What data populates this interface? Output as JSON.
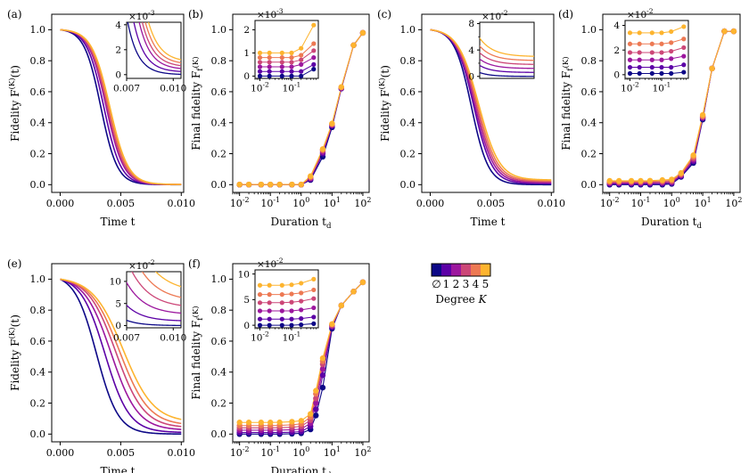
{
  "figure": {
    "colorbar": {
      "labels": [
        "∅",
        "1",
        "2",
        "3",
        "4",
        "5"
      ],
      "title": "Degree K",
      "colors": [
        "#0d0887",
        "#5c01a6",
        "#9c179e",
        "#cc4778",
        "#ed7953",
        "#fdb42f"
      ]
    }
  },
  "chart_data": [
    {
      "id": "a",
      "panel_label": "(a)",
      "type": "line",
      "xlabel": "Time t",
      "ylabel": "Fidelity F^(K)(t)",
      "xlim": [
        -0.0007,
        0.0102
      ],
      "ylim": [
        -0.05,
        1.1
      ],
      "xticks": [
        0.0,
        0.005,
        0.01
      ],
      "xtick_labels": [
        "0.000",
        "0.005",
        "0.010"
      ],
      "yticks": [
        0.0,
        0.2,
        0.4,
        0.6,
        0.8,
        1.0
      ],
      "ytick_labels": [
        "0.0",
        "0.2",
        "0.4",
        "0.6",
        "0.8",
        "1.0"
      ],
      "series_model": {
        "kind": "decay",
        "centers": [
          0.00335,
          0.0036,
          0.0038,
          0.0039,
          0.004,
          0.0041
        ],
        "widths": [
          0.00068,
          0.0007,
          0.00072,
          0.00073,
          0.00074,
          0.00075
        ],
        "floors": [
          0.0,
          0.0002,
          0.0004,
          0.0006,
          0.0008,
          0.001
        ]
      },
      "inset": {
        "xlim": [
          0.007,
          0.0105
        ],
        "ylim": [
          -0.0003,
          0.0042
        ],
        "xticks": [
          0.007,
          0.01
        ],
        "xtick_labels": [
          "0.007",
          "0.010"
        ],
        "yticks": [
          0,
          0.002,
          0.004
        ],
        "ytick_labels": [
          "0",
          "2",
          "4"
        ],
        "multiplier": "×10^-3"
      }
    },
    {
      "id": "b",
      "panel_label": "(b)",
      "type": "scatter",
      "xlabel": "Duration t_d",
      "ylabel": "Final fidelity F_f^(K)",
      "xscale": "log",
      "xlim": [
        0.006,
        160
      ],
      "ylim": [
        -0.05,
        1.1
      ],
      "xticks": [
        0.01,
        0.1,
        1,
        10,
        100
      ],
      "xtick_labels": [
        "10^-2",
        "10^-1",
        "10^0",
        "10^1",
        "10^2"
      ],
      "yticks": [
        0.0,
        0.2,
        0.4,
        0.6,
        0.8,
        1.0
      ],
      "ytick_labels": [
        "0.0",
        "0.2",
        "0.4",
        "0.6",
        "0.8",
        "1.0"
      ],
      "x": [
        0.01,
        0.02,
        0.05,
        0.1,
        0.2,
        0.5,
        1,
        2,
        5,
        10,
        20,
        50,
        100
      ],
      "series": [
        {
          "name": "∅",
          "values": [
            0.0,
            0.0,
            0.0,
            0.0,
            0.0,
            0.0,
            0.0,
            0.03,
            0.18,
            0.37,
            0.62,
            0.9,
            0.98
          ]
        },
        {
          "name": "1",
          "values": [
            0.0002,
            0.0002,
            0.0002,
            0.0002,
            0.0002,
            0.0002,
            0.0003,
            0.035,
            0.2,
            0.38,
            0.62,
            0.9,
            0.98
          ]
        },
        {
          "name": "2",
          "values": [
            0.0004,
            0.0004,
            0.0004,
            0.0004,
            0.0004,
            0.0004,
            0.0005,
            0.04,
            0.21,
            0.385,
            0.625,
            0.9,
            0.98
          ]
        },
        {
          "name": "3",
          "values": [
            0.0006,
            0.0006,
            0.0006,
            0.0006,
            0.0006,
            0.0006,
            0.0008,
            0.045,
            0.22,
            0.39,
            0.625,
            0.9,
            0.98
          ]
        },
        {
          "name": "4",
          "values": [
            0.0008,
            0.0008,
            0.0008,
            0.0008,
            0.0008,
            0.0008,
            0.001,
            0.05,
            0.225,
            0.39,
            0.63,
            0.9,
            0.98
          ]
        },
        {
          "name": "5",
          "values": [
            0.001,
            0.001,
            0.001,
            0.001,
            0.001,
            0.001,
            0.0013,
            0.055,
            0.23,
            0.395,
            0.63,
            0.9,
            0.98
          ]
        }
      ],
      "inset": {
        "xscale": "log",
        "xlim": [
          0.007,
          0.7
        ],
        "ylim": [
          -0.0001,
          0.0024
        ],
        "xticks": [
          0.01,
          0.1
        ],
        "xtick_labels": [
          "10^-2",
          "10^-1"
        ],
        "yticks": [
          0,
          0.001,
          0.002
        ],
        "ytick_labels": [
          "0",
          "1",
          "2"
        ],
        "multiplier": "×10^-3",
        "x": [
          0.01,
          0.02,
          0.05,
          0.1,
          0.2,
          0.5
        ],
        "series": [
          {
            "name": "∅",
            "values": [
              0.0,
              0.0,
              0.0,
              0.0,
              0.0,
              0.0003
            ]
          },
          {
            "name": "1",
            "values": [
              0.0002,
              0.0002,
              0.0002,
              0.0002,
              0.0002,
              0.0005
            ]
          },
          {
            "name": "2",
            "values": [
              0.0004,
              0.0004,
              0.0004,
              0.0004,
              0.0005,
              0.0008
            ]
          },
          {
            "name": "3",
            "values": [
              0.0006,
              0.0006,
              0.0006,
              0.0006,
              0.0007,
              0.0011
            ]
          },
          {
            "name": "4",
            "values": [
              0.0008,
              0.0008,
              0.0008,
              0.0008,
              0.0009,
              0.0014
            ]
          },
          {
            "name": "5",
            "values": [
              0.001,
              0.001,
              0.001,
              0.001,
              0.0012,
              0.0022
            ]
          }
        ]
      }
    },
    {
      "id": "c",
      "panel_label": "(c)",
      "type": "line",
      "xlabel": "Time t",
      "ylabel": "Fidelity F^(K)(t)",
      "xlim": [
        -0.0007,
        0.0102
      ],
      "ylim": [
        -0.05,
        1.1
      ],
      "xticks": [
        0.0,
        0.005,
        0.01
      ],
      "xtick_labels": [
        "0.000",
        "0.005",
        "0.010"
      ],
      "yticks": [
        0.0,
        0.2,
        0.4,
        0.6,
        0.8,
        1.0
      ],
      "ytick_labels": [
        "0.0",
        "0.2",
        "0.4",
        "0.6",
        "0.8",
        "1.0"
      ],
      "series_model": {
        "kind": "decay",
        "centers": [
          0.0034,
          0.0036,
          0.0037,
          0.0038,
          0.0039,
          0.004
        ],
        "widths": [
          0.0007,
          0.00075,
          0.00078,
          0.0008,
          0.00082,
          0.00085
        ],
        "floors": [
          0.0,
          0.006,
          0.012,
          0.018,
          0.024,
          0.03
        ]
      },
      "inset": {
        "xlim": [
          0.007,
          0.0105
        ],
        "ylim": [
          -0.003,
          0.082
        ],
        "xticks": [],
        "xtick_labels": [],
        "yticks": [
          0,
          0.04,
          0.08
        ],
        "ytick_labels": [
          "0",
          "4",
          "8"
        ],
        "yticks_minor": [
          0.02,
          0.06
        ],
        "multiplier": "×10^-2"
      }
    },
    {
      "id": "d",
      "panel_label": "(d)",
      "type": "scatter",
      "xlabel": "Duration t_d",
      "ylabel": "Final fidelity F_f^(K)",
      "xscale": "log",
      "xlim": [
        0.006,
        160
      ],
      "ylim": [
        -0.05,
        1.1
      ],
      "xticks": [
        0.01,
        0.1,
        1,
        10,
        100
      ],
      "xtick_labels": [
        "10^-2",
        "10^-1",
        "10^0",
        "10^1",
        "10^2"
      ],
      "yticks": [
        0.0,
        0.2,
        0.4,
        0.6,
        0.8,
        1.0
      ],
      "ytick_labels": [
        "0.0",
        "0.2",
        "0.4",
        "0.6",
        "0.8",
        "1.0"
      ],
      "x": [
        0.01,
        0.02,
        0.05,
        0.1,
        0.2,
        0.5,
        1,
        2,
        5,
        10,
        20,
        50,
        100
      ],
      "series": [
        {
          "name": "∅",
          "values": [
            0.0,
            0.0,
            0.0,
            0.0,
            0.0,
            0.0,
            0.005,
            0.05,
            0.14,
            0.42,
            0.75,
            0.99,
            0.99
          ]
        },
        {
          "name": "1",
          "values": [
            0.005,
            0.005,
            0.005,
            0.005,
            0.005,
            0.006,
            0.01,
            0.055,
            0.15,
            0.43,
            0.75,
            0.99,
            0.99
          ]
        },
        {
          "name": "2",
          "values": [
            0.01,
            0.01,
            0.01,
            0.01,
            0.011,
            0.012,
            0.016,
            0.06,
            0.16,
            0.43,
            0.75,
            0.99,
            0.99
          ]
        },
        {
          "name": "3",
          "values": [
            0.015,
            0.015,
            0.015,
            0.015,
            0.016,
            0.018,
            0.022,
            0.065,
            0.17,
            0.44,
            0.75,
            0.99,
            0.99
          ]
        },
        {
          "name": "4",
          "values": [
            0.02,
            0.02,
            0.02,
            0.02,
            0.021,
            0.024,
            0.028,
            0.07,
            0.18,
            0.44,
            0.75,
            0.99,
            0.99
          ]
        },
        {
          "name": "5",
          "values": [
            0.025,
            0.025,
            0.025,
            0.025,
            0.026,
            0.03,
            0.034,
            0.075,
            0.19,
            0.45,
            0.75,
            0.99,
            0.99
          ]
        }
      ],
      "inset": {
        "xscale": "log",
        "xlim": [
          0.007,
          0.7
        ],
        "ylim": [
          -0.003,
          0.044
        ],
        "xticks": [
          0.01,
          0.1
        ],
        "xtick_labels": [
          "10^-2",
          "10^-1"
        ],
        "yticks": [
          0,
          0.02,
          0.04
        ],
        "ytick_labels": [
          "0",
          "2",
          "4"
        ],
        "multiplier": "×10^-2",
        "x": [
          0.01,
          0.02,
          0.05,
          0.1,
          0.2,
          0.5
        ],
        "series": [
          {
            "name": "∅",
            "values": [
              0.001,
              0.001,
              0.001,
              0.001,
              0.001,
              0.002
            ]
          },
          {
            "name": "1",
            "values": [
              0.006,
              0.006,
              0.006,
              0.006,
              0.006,
              0.008
            ]
          },
          {
            "name": "2",
            "values": [
              0.012,
              0.012,
              0.012,
              0.012,
              0.013,
              0.015
            ]
          },
          {
            "name": "3",
            "values": [
              0.018,
              0.018,
              0.018,
              0.018,
              0.019,
              0.022
            ]
          },
          {
            "name": "4",
            "values": [
              0.025,
              0.025,
              0.025,
              0.025,
              0.026,
              0.029
            ]
          },
          {
            "name": "5",
            "values": [
              0.034,
              0.034,
              0.034,
              0.034,
              0.035,
              0.039
            ]
          }
        ]
      }
    },
    {
      "id": "e",
      "panel_label": "(e)",
      "type": "line",
      "xlabel": "Time t",
      "ylabel": "Fidelity F^(K)(t)",
      "xlim": [
        -0.0007,
        0.0102
      ],
      "ylim": [
        -0.05,
        1.1
      ],
      "xticks": [
        0.0,
        0.005,
        0.01
      ],
      "xtick_labels": [
        "0.000",
        "0.005",
        "0.010"
      ],
      "yticks": [
        0.0,
        0.2,
        0.4,
        0.6,
        0.8,
        1.0
      ],
      "ytick_labels": [
        "0.0",
        "0.2",
        "0.4",
        "0.6",
        "0.8",
        "1.0"
      ],
      "series_model": {
        "kind": "decay",
        "centers": [
          0.003,
          0.0037,
          0.0042,
          0.0046,
          0.0049,
          0.0052
        ],
        "widths": [
          0.0009,
          0.001,
          0.0011,
          0.00115,
          0.0012,
          0.00125
        ],
        "floors": [
          0.0,
          0.01,
          0.025,
          0.04,
          0.055,
          0.075
        ]
      },
      "inset": {
        "xlim": [
          0.007,
          0.0105
        ],
        "ylim": [
          -0.005,
          0.122
        ],
        "xticks": [
          0.007,
          0.01
        ],
        "xtick_labels": [
          "0.007",
          "0.010"
        ],
        "yticks": [
          0,
          0.05,
          0.1
        ],
        "ytick_labels": [
          "0",
          "5",
          "10"
        ],
        "multiplier": "×10^-2"
      }
    },
    {
      "id": "f",
      "panel_label": "(f)",
      "type": "scatter",
      "xlabel": "Duration t_d",
      "ylabel": "Final fidelity F_f^(K)",
      "xscale": "log",
      "xlim": [
        0.006,
        160
      ],
      "ylim": [
        -0.05,
        1.1
      ],
      "xticks": [
        0.01,
        0.1,
        1,
        10,
        100
      ],
      "xtick_labels": [
        "10^-2",
        "10^-1",
        "10^0",
        "10^1",
        "10^2"
      ],
      "yticks": [
        0.0,
        0.2,
        0.4,
        0.6,
        0.8,
        1.0
      ],
      "ytick_labels": [
        "0.0",
        "0.2",
        "0.4",
        "0.6",
        "0.8",
        "1.0"
      ],
      "x": [
        0.01,
        0.02,
        0.05,
        0.1,
        0.2,
        0.5,
        1,
        2,
        3,
        5,
        10,
        20,
        50,
        100
      ],
      "series": [
        {
          "name": "∅",
          "values": [
            0.0,
            0.0,
            0.0,
            0.0,
            0.0,
            0.002,
            0.005,
            0.03,
            0.12,
            0.3,
            0.68,
            0.83,
            0.92,
            0.98
          ]
        },
        {
          "name": "1",
          "values": [
            0.01,
            0.01,
            0.01,
            0.01,
            0.01,
            0.012,
            0.016,
            0.05,
            0.16,
            0.38,
            0.69,
            0.83,
            0.92,
            0.98
          ]
        },
        {
          "name": "2",
          "values": [
            0.025,
            0.025,
            0.025,
            0.025,
            0.026,
            0.028,
            0.032,
            0.07,
            0.2,
            0.42,
            0.7,
            0.83,
            0.92,
            0.98
          ]
        },
        {
          "name": "3",
          "values": [
            0.04,
            0.04,
            0.04,
            0.04,
            0.041,
            0.044,
            0.05,
            0.09,
            0.23,
            0.45,
            0.7,
            0.83,
            0.92,
            0.98
          ]
        },
        {
          "name": "4",
          "values": [
            0.055,
            0.055,
            0.055,
            0.055,
            0.056,
            0.06,
            0.066,
            0.11,
            0.26,
            0.47,
            0.71,
            0.83,
            0.92,
            0.98
          ]
        },
        {
          "name": "5",
          "values": [
            0.075,
            0.075,
            0.075,
            0.075,
            0.076,
            0.08,
            0.086,
            0.13,
            0.28,
            0.49,
            0.71,
            0.83,
            0.92,
            0.98
          ]
        }
      ],
      "inset": {
        "xscale": "log",
        "xlim": [
          0.007,
          0.7
        ],
        "ylim": [
          -0.005,
          0.108
        ],
        "xticks": [
          0.01,
          0.1
        ],
        "xtick_labels": [
          "10^-2",
          "10^-1"
        ],
        "yticks": [
          0,
          0.05,
          0.1
        ],
        "ytick_labels": [
          "0",
          "5",
          "10"
        ],
        "multiplier": "×10^-2",
        "x": [
          0.01,
          0.02,
          0.05,
          0.1,
          0.2,
          0.5
        ],
        "series": [
          {
            "name": "∅",
            "values": [
              0.0,
              0.0,
              0.0,
              0.0,
              0.001,
              0.003
            ]
          },
          {
            "name": "1",
            "values": [
              0.012,
              0.012,
              0.012,
              0.012,
              0.013,
              0.016
            ]
          },
          {
            "name": "2",
            "values": [
              0.028,
              0.028,
              0.028,
              0.028,
              0.03,
              0.034
            ]
          },
          {
            "name": "3",
            "values": [
              0.044,
              0.044,
              0.044,
              0.045,
              0.047,
              0.052
            ]
          },
          {
            "name": "4",
            "values": [
              0.06,
              0.06,
              0.06,
              0.061,
              0.063,
              0.069
            ]
          },
          {
            "name": "5",
            "values": [
              0.078,
              0.078,
              0.078,
              0.079,
              0.082,
              0.09
            ]
          }
        ]
      }
    }
  ]
}
